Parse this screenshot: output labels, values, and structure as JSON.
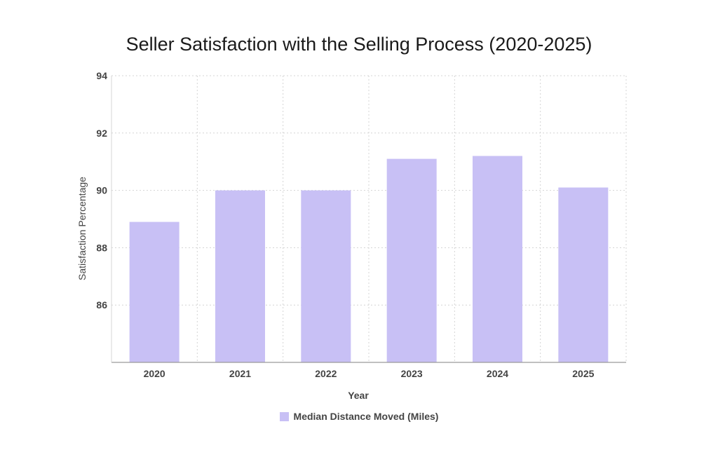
{
  "chart_data": {
    "type": "bar",
    "title": "Seller Satisfaction with the Selling Process (2020-2025)",
    "xlabel": "Year",
    "ylabel": "Satisfaction Percentage",
    "categories": [
      "2020",
      "2021",
      "2022",
      "2023",
      "2024",
      "2025"
    ],
    "series": [
      {
        "name": "Median Distance Moved (Miles)",
        "values": [
          88.9,
          90.0,
          90.0,
          91.1,
          91.2,
          90.1
        ],
        "color": "#c8c0f5"
      }
    ],
    "ylim": [
      84,
      94
    ],
    "yticks": [
      86,
      88,
      90,
      92,
      94
    ],
    "grid": true,
    "legend_position": "bottom"
  }
}
